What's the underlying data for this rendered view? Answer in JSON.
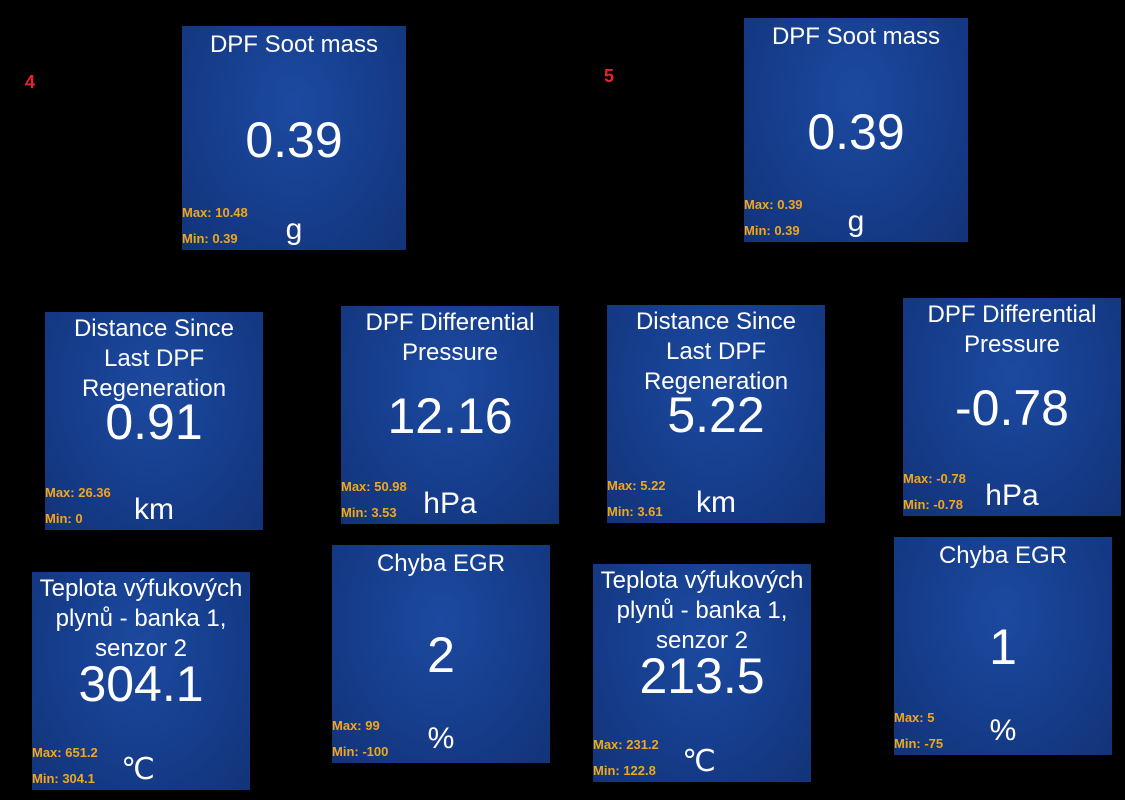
{
  "panels": {
    "left": {
      "number": "4"
    },
    "right": {
      "number": "5"
    }
  },
  "tiles": {
    "t1": {
      "title": "DPF Soot mass",
      "value": "0.39",
      "max": "Max: 10.48",
      "min": "Min: 0.39",
      "unit": "g"
    },
    "t2": {
      "title": "DPF Soot mass",
      "value": "0.39",
      "max": "Max: 0.39",
      "min": "Min: 0.39",
      "unit": "g"
    },
    "t3": {
      "title": "Distance Since Last DPF Regeneration",
      "value": "0.91",
      "max": "Max: 26.36",
      "min": "Min: 0",
      "unit": "km"
    },
    "t4": {
      "title": "DPF Differential Pressure",
      "value": "12.16",
      "max": "Max: 50.98",
      "min": "Min: 3.53",
      "unit": "hPa"
    },
    "t5": {
      "title": "Distance Since Last DPF Regeneration",
      "value": "5.22",
      "max": "Max: 5.22",
      "min": "Min: 3.61",
      "unit": "km"
    },
    "t6": {
      "title": "DPF Differential Pressure",
      "value": "-0.78",
      "max": "Max: -0.78",
      "min": "Min: -0.78",
      "unit": "hPa"
    },
    "t7": {
      "title": "Teplota výfukových plynů - banka 1, senzor 2",
      "value": "304.1",
      "max": "Max: 651.2",
      "min": "Min: 304.1",
      "unit": "℃"
    },
    "t8": {
      "title": "Chyba EGR",
      "value": "2",
      "max": "Max: 99",
      "min": "Min: -100",
      "unit": "%"
    },
    "t9": {
      "title": "Teplota výfukových plynů - banka 1, senzor 2",
      "value": "213.5",
      "max": "Max: 231.2",
      "min": "Min: 122.8",
      "unit": "℃"
    },
    "t10": {
      "title": "Chyba EGR",
      "value": "1",
      "max": "Max: 5",
      "min": "Min: -75",
      "unit": "%"
    }
  }
}
